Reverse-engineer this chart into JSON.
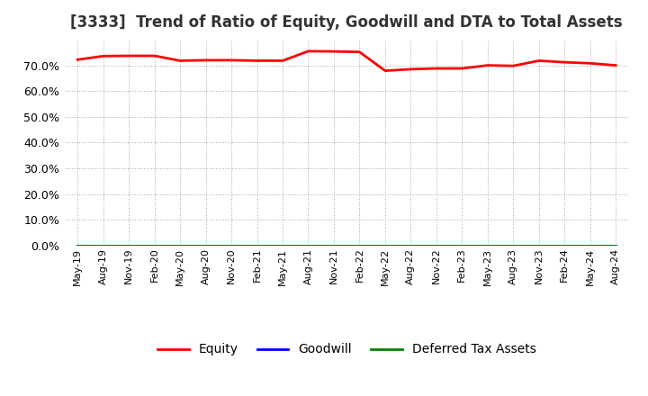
{
  "title": "[3333]  Trend of Ratio of Equity, Goodwill and DTA to Total Assets",
  "x_labels": [
    "May-19",
    "Aug-19",
    "Nov-19",
    "Feb-20",
    "May-20",
    "Aug-20",
    "Nov-20",
    "Feb-21",
    "May-21",
    "Aug-21",
    "Nov-21",
    "Feb-22",
    "May-22",
    "Aug-22",
    "Nov-22",
    "Feb-23",
    "May-23",
    "Aug-23",
    "Nov-23",
    "Feb-24",
    "May-24",
    "Aug-24"
  ],
  "equity": [
    0.722,
    0.736,
    0.737,
    0.737,
    0.718,
    0.72,
    0.72,
    0.718,
    0.718,
    0.755,
    0.754,
    0.752,
    0.679,
    0.685,
    0.688,
    0.688,
    0.7,
    0.698,
    0.718,
    0.712,
    0.708,
    0.7
  ],
  "goodwill": [
    0.0,
    0.0,
    0.0,
    0.0,
    0.0,
    0.0,
    0.0,
    0.0,
    0.0,
    0.0,
    0.0,
    0.0,
    0.0,
    0.0,
    0.0,
    0.0,
    0.0,
    0.0,
    0.0,
    0.0,
    0.0,
    0.0
  ],
  "dta": [
    0.0,
    0.0,
    0.0,
    0.0,
    0.0,
    0.0,
    0.0,
    0.0,
    0.0,
    0.0,
    0.0,
    0.0,
    0.0,
    0.0,
    0.0,
    0.0,
    0.0,
    0.0,
    0.0,
    0.0,
    0.0,
    0.0
  ],
  "equity_color": "#ff0000",
  "goodwill_color": "#0000ff",
  "dta_color": "#008000",
  "ylim": [
    0.0,
    0.8
  ],
  "yticks": [
    0.0,
    0.1,
    0.2,
    0.3,
    0.4,
    0.5,
    0.6,
    0.7
  ],
  "background_color": "#ffffff",
  "plot_bg_color": "#ffffff",
  "grid_color": "#aaaaaa",
  "title_fontsize": 12,
  "legend_labels": [
    "Equity",
    "Goodwill",
    "Deferred Tax Assets"
  ]
}
